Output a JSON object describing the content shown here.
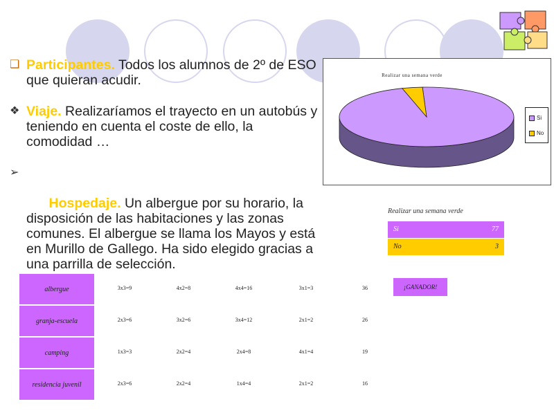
{
  "colors": {
    "accent_yellow": "#ffcc00",
    "accent_purple": "#cc66ff",
    "circle": "#d6d6ee"
  },
  "bullets": [
    {
      "marker": "checkbox",
      "keyword": "Participantes.",
      "text": " Todos los alumnos de 2º de ESO que quieran acudir."
    },
    {
      "marker": "diamond",
      "keyword": "Viaje.",
      "text": " Realizaríamos el trayecto en un autobús y teniendo en cuenta el coste de ello, la comodidad …"
    },
    {
      "marker": "arrow",
      "keyword": "  Hospedaje.",
      "text": " Un albergue por su horario, la disposición de las habitaciones y las zonas comunes. El albergue se llama los Mayos y está en Murillo de Gallego. Ha sido elegido gracias a una parrilla de selección."
    }
  ],
  "chart_data": {
    "type": "pie",
    "title": "Realizar una semana verde",
    "categories": [
      "Si",
      "No"
    ],
    "values": [
      77,
      3
    ],
    "colors": [
      "#cc99ff",
      "#ffcc00"
    ],
    "legend": "right"
  },
  "summary_table": {
    "title": "Realizar una semana verde",
    "rows": [
      {
        "label": "Si",
        "value": "77"
      },
      {
        "label": "No",
        "value": "3"
      }
    ]
  },
  "grid": {
    "rows": [
      {
        "label": "albergue",
        "cells": [
          "3x3=9",
          "4x2=8",
          "4x4=16",
          "3x1=3",
          "36"
        ]
      },
      {
        "label": "granja-escuela",
        "cells": [
          "2x3=6",
          "3x2=6",
          "3x4=12",
          "2x1=2",
          "26"
        ]
      },
      {
        "label": "camping",
        "cells": [
          "1x3=3",
          "2x2=4",
          "2x4=8",
          "4x1=4",
          "19"
        ]
      },
      {
        "label": "residencia juvenil",
        "cells": [
          "2x3=6",
          "2x2=4",
          "1x4=4",
          "2x1=2",
          "16"
        ]
      }
    ],
    "winner_label": "¡GANADOR!"
  }
}
